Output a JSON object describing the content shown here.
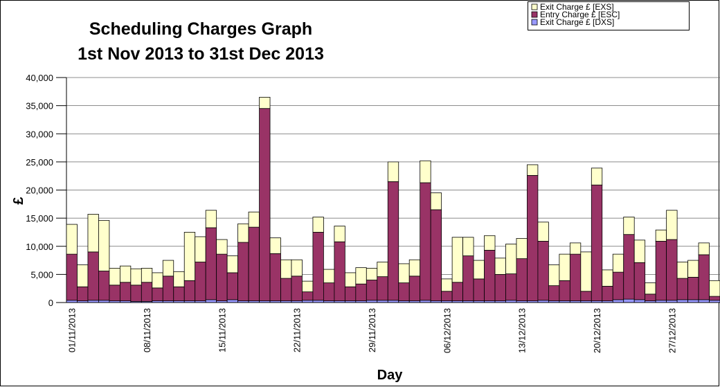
{
  "chart_data": {
    "type": "stacked_bar",
    "title": "Scheduling Charges Graph",
    "subtitle": "1st Nov 2013 to 31st Dec 2013",
    "x_label": "Day",
    "y_label": "£",
    "categories": [
      "01/11/2013",
      null,
      null,
      null,
      null,
      null,
      null,
      "08/11/2013",
      null,
      null,
      null,
      null,
      null,
      null,
      "15/11/2013",
      null,
      null,
      null,
      null,
      null,
      null,
      "22/11/2013",
      null,
      null,
      null,
      null,
      null,
      null,
      "29/11/2013",
      null,
      null,
      null,
      null,
      null,
      null,
      "06/12/2013",
      null,
      null,
      null,
      null,
      null,
      null,
      "13/12/2013",
      null,
      null,
      null,
      null,
      null,
      null,
      "20/12/2013",
      null,
      null,
      null,
      null,
      null,
      null,
      "27/12/2013",
      null,
      null,
      null,
      null
    ],
    "series": [
      {
        "name": "Exit Charge £ [DXS]",
        "color": "#9999ff",
        "values": [
          400,
          300,
          400,
          400,
          300,
          300,
          200,
          200,
          300,
          300,
          300,
          300,
          300,
          500,
          300,
          500,
          300,
          300,
          300,
          300,
          300,
          300,
          400,
          400,
          300,
          300,
          300,
          300,
          400,
          400,
          400,
          300,
          300,
          400,
          300,
          300,
          300,
          300,
          300,
          300,
          300,
          400,
          300,
          300,
          400,
          300,
          300,
          300,
          300,
          300,
          300,
          500,
          600,
          500,
          300,
          400,
          400,
          500,
          500,
          500,
          400
        ]
      },
      {
        "name": "Entry Charge £ [ESC]",
        "color": "#993366",
        "values": [
          8200,
          2500,
          8600,
          5200,
          2800,
          3300,
          2900,
          3400,
          2300,
          4400,
          2500,
          3600,
          6900,
          12800,
          8300,
          4800,
          10400,
          13100,
          34200,
          8400,
          4000,
          4400,
          1500,
          12100,
          3200,
          10500,
          2500,
          3000,
          3600,
          4200,
          21100,
          3200,
          4400,
          20900,
          16200,
          1700,
          3300,
          8000,
          3900,
          9000,
          4700,
          4700,
          7500,
          22300,
          10500,
          2700,
          3600,
          8300,
          1700,
          20600,
          2600,
          4900,
          11500,
          6600,
          1200,
          10500,
          10800,
          3800,
          4000,
          8000,
          700
        ]
      },
      {
        "name": "Exit Charge £ [EXS]",
        "color": "#ffffcc",
        "values": [
          5300,
          3900,
          6700,
          9000,
          3000,
          2900,
          2900,
          2500,
          2700,
          2800,
          2700,
          8600,
          4500,
          3100,
          2600,
          3000,
          3300,
          2700,
          2000,
          2800,
          3300,
          2900,
          1900,
          2700,
          2400,
          2800,
          2500,
          2900,
          2100,
          2600,
          3500,
          3400,
          2900,
          3900,
          3000,
          2200,
          8000,
          3300,
          3300,
          2600,
          2900,
          5300,
          3600,
          1900,
          3400,
          3700,
          4700,
          2000,
          7000,
          3000,
          2900,
          3200,
          3100,
          4000,
          2000,
          2000,
          5200,
          2900,
          3000,
          2100,
          2800
        ]
      }
    ],
    "ylim": [
      0,
      40000
    ],
    "yticks": [
      0,
      {
        "value": 5000,
        "label": "5,000"
      },
      {
        "value": 10000,
        "label": "10,000"
      },
      {
        "value": 15000,
        "label": "15,000"
      },
      {
        "value": 20000,
        "label": "20,000"
      },
      {
        "value": 25000,
        "label": "25,000"
      },
      {
        "value": 30000,
        "label": "30,000"
      },
      {
        "value": 35000,
        "label": "35,000"
      },
      {
        "value": 40000,
        "label": "40,000"
      }
    ],
    "grid": true,
    "legend": "top-right"
  }
}
